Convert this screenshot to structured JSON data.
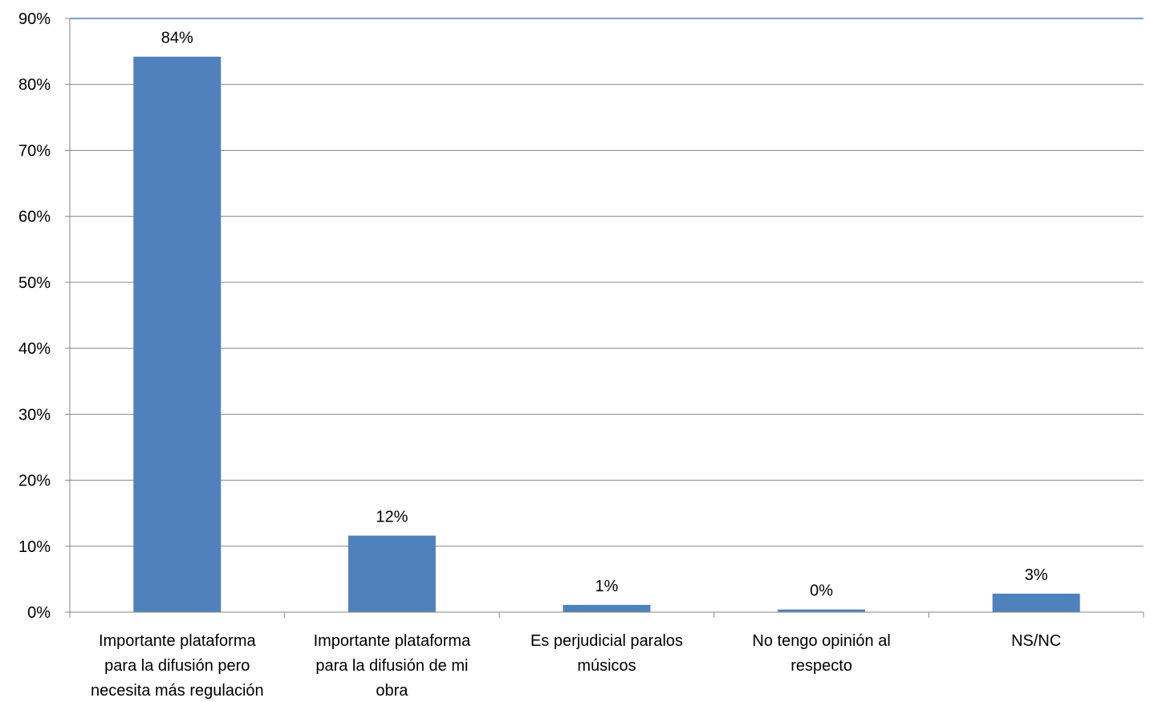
{
  "chart_data": {
    "type": "bar",
    "title": "",
    "xlabel": "",
    "ylabel": "",
    "ylim": [
      0,
      90
    ],
    "ytick_step": 10,
    "yticks": [
      "0%",
      "10%",
      "20%",
      "30%",
      "40%",
      "50%",
      "60%",
      "70%",
      "80%",
      "90%"
    ],
    "grid": true,
    "legend": "none",
    "categories": [
      [
        "Importante plataforma",
        "para la difusión pero",
        "necesita más regulación"
      ],
      [
        "Importante plataforma",
        "para la difusión de mi",
        "obra"
      ],
      [
        "Es perjudicial paralos",
        "músicos"
      ],
      [
        "No tengo opinión al",
        "respecto"
      ],
      [
        "NS/NC"
      ]
    ],
    "values": [
      84.2,
      11.6,
      1.1,
      0.4,
      2.8
    ],
    "data_labels": [
      "84%",
      "12%",
      "1%",
      "0%",
      "3%"
    ],
    "colors": {
      "bar": "#4f81bd",
      "grid": "#868686",
      "top_line": "#4f81bd",
      "axis": "#868686"
    }
  }
}
